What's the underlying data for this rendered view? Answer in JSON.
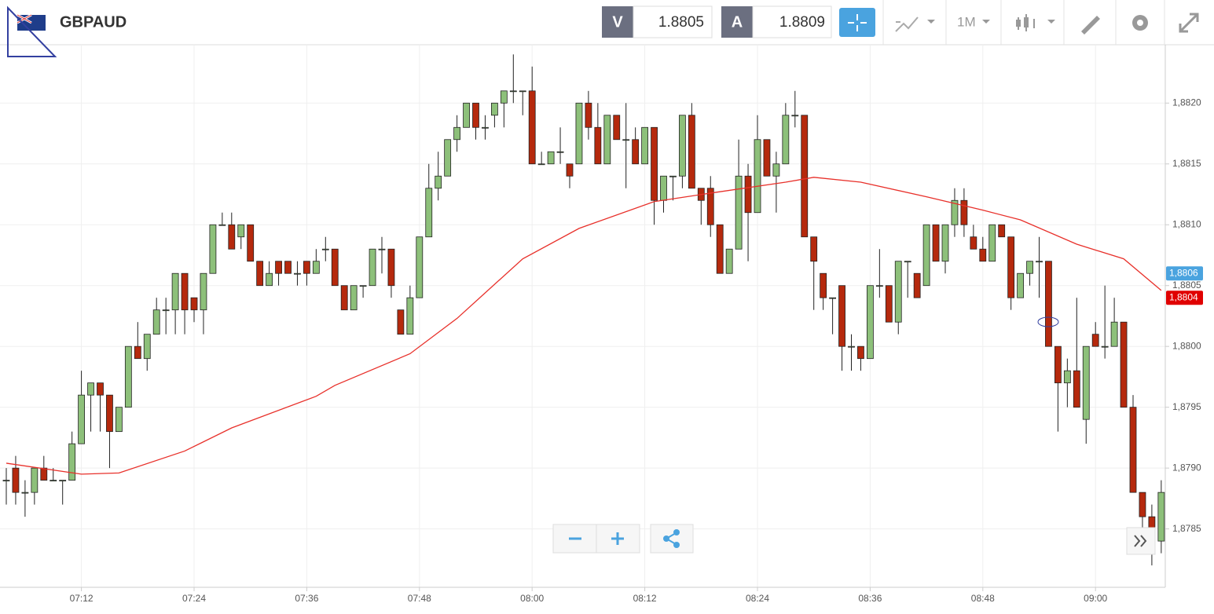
{
  "header": {
    "symbol": "GBPAUD",
    "bid_label": "V",
    "bid": 1.8805,
    "ask_label": "A",
    "ask": 1.8809,
    "timeframe": "1M"
  },
  "chart_data": {
    "type": "candlestick",
    "x": [
      "07:04",
      "07:05",
      "07:06",
      "07:07",
      "07:08",
      "07:09",
      "07:10",
      "07:11",
      "07:12",
      "07:13",
      "07:14",
      "07:15",
      "07:16",
      "07:17",
      "07:18",
      "07:19",
      "07:20",
      "07:21",
      "07:22",
      "07:23",
      "07:24",
      "07:25",
      "07:26",
      "07:27",
      "07:28",
      "07:29",
      "07:30",
      "07:31",
      "07:32",
      "07:33",
      "07:34",
      "07:35",
      "07:36",
      "07:37",
      "07:38",
      "07:39",
      "07:40",
      "07:41",
      "07:42",
      "07:43",
      "07:44",
      "07:45",
      "07:46",
      "07:47",
      "07:48",
      "07:49",
      "07:50",
      "07:51",
      "07:52",
      "07:53",
      "07:54",
      "07:55",
      "07:56",
      "07:57",
      "07:58",
      "07:59",
      "08:00",
      "08:01",
      "08:02",
      "08:03",
      "08:04",
      "08:05",
      "08:06",
      "08:07",
      "08:08",
      "08:09",
      "08:10",
      "08:11",
      "08:12",
      "08:13",
      "08:14",
      "08:15",
      "08:16",
      "08:17",
      "08:18",
      "08:19",
      "08:20",
      "08:21",
      "08:22",
      "08:23",
      "08:24",
      "08:25",
      "08:26",
      "08:27",
      "08:28",
      "08:29",
      "08:30",
      "08:31",
      "08:32",
      "08:33",
      "08:34",
      "08:35",
      "08:36",
      "08:37",
      "08:38",
      "08:39",
      "08:40",
      "08:41",
      "08:42",
      "08:43",
      "08:44",
      "08:45",
      "08:46",
      "08:47",
      "08:48",
      "08:49",
      "08:50",
      "08:51",
      "08:52",
      "08:53",
      "08:54",
      "08:55",
      "08:56",
      "08:57",
      "08:58",
      "08:59",
      "09:00",
      "09:01",
      "09:02",
      "09:03",
      "09:04",
      "09:05",
      "09:06",
      "09:07"
    ],
    "open": [
      1.8789,
      1.879,
      1.8788,
      1.8788,
      1.879,
      1.8789,
      1.8789,
      1.8789,
      1.8792,
      1.8796,
      1.8797,
      1.8796,
      1.8793,
      1.8795,
      1.88,
      1.8799,
      1.8801,
      1.8803,
      1.8803,
      1.8806,
      1.8804,
      1.8803,
      1.8806,
      1.881,
      1.881,
      1.8809,
      1.881,
      1.8807,
      1.8805,
      1.8807,
      1.8807,
      1.8806,
      1.8807,
      1.8806,
      1.8808,
      1.8808,
      1.8805,
      1.8803,
      1.8805,
      1.8805,
      1.8808,
      1.8808,
      1.8803,
      1.8801,
      1.8804,
      1.8809,
      1.8813,
      1.8814,
      1.8817,
      1.8818,
      1.882,
      1.8818,
      1.8819,
      1.882,
      1.8821,
      1.8821,
      1.8821,
      1.8815,
      1.8815,
      1.8816,
      1.8815,
      1.8815,
      1.882,
      1.8818,
      1.8815,
      1.8819,
      1.8817,
      1.8817,
      1.8815,
      1.8818,
      1.8812,
      1.8814,
      1.8814,
      1.8819,
      1.8813,
      1.8813,
      1.881,
      1.8806,
      1.8808,
      1.8814,
      1.8811,
      1.8817,
      1.8814,
      1.8815,
      1.8819,
      1.8819,
      1.8809,
      1.8806,
      1.8804,
      1.8805,
      1.88,
      1.88,
      1.8799,
      1.8805,
      1.8805,
      1.8802,
      1.8807,
      1.8806,
      1.8805,
      1.881,
      1.8807,
      1.881,
      1.8812,
      1.8809,
      1.8808,
      1.8807,
      1.881,
      1.8809,
      1.8804,
      1.8806,
      1.8807,
      1.8807,
      1.88,
      1.8797,
      1.8798,
      1.8794,
      1.8801,
      1.88,
      1.88,
      1.8802,
      1.8795,
      1.8788,
      1.8786,
      1.8784
    ],
    "high": [
      1.879,
      1.8791,
      1.8789,
      1.879,
      1.8791,
      1.879,
      1.8789,
      1.8793,
      1.8798,
      1.8797,
      1.8797,
      1.8796,
      1.8795,
      1.88,
      1.8802,
      1.8801,
      1.8804,
      1.8804,
      1.8806,
      1.8806,
      1.8804,
      1.8806,
      1.881,
      1.8811,
      1.8811,
      1.881,
      1.881,
      1.8807,
      1.8807,
      1.8807,
      1.8807,
      1.8807,
      1.8807,
      1.8808,
      1.8809,
      1.8808,
      1.8805,
      1.8805,
      1.8805,
      1.8808,
      1.8809,
      1.8808,
      1.8803,
      1.8805,
      1.8809,
      1.8815,
      1.8816,
      1.8817,
      1.8819,
      1.882,
      1.882,
      1.8819,
      1.882,
      1.8821,
      1.8824,
      1.8821,
      1.8823,
      1.8816,
      1.8816,
      1.8818,
      1.8815,
      1.882,
      1.8821,
      1.882,
      1.8819,
      1.8819,
      1.882,
      1.8818,
      1.8818,
      1.8818,
      1.8814,
      1.8814,
      1.8819,
      1.882,
      1.8813,
      1.8814,
      1.881,
      1.8808,
      1.8817,
      1.8815,
      1.8819,
      1.8817,
      1.8816,
      1.882,
      1.8821,
      1.8819,
      1.8809,
      1.8806,
      1.8804,
      1.8805,
      1.8801,
      1.88,
      1.8805,
      1.8808,
      1.8805,
      1.8807,
      1.8807,
      1.8806,
      1.881,
      1.881,
      1.881,
      1.8813,
      1.8813,
      1.881,
      1.8809,
      1.881,
      1.881,
      1.8809,
      1.8806,
      1.8807,
      1.8809,
      1.8807,
      1.88,
      1.8799,
      1.8804,
      1.88,
      1.8802,
      1.8805,
      1.8804,
      1.8802,
      1.8796,
      1.8788,
      1.8787,
      1.8789
    ],
    "low": [
      1.8787,
      1.8787,
      1.8786,
      1.8787,
      1.8789,
      1.8789,
      1.8787,
      1.8789,
      1.8792,
      1.8793,
      1.8793,
      1.879,
      1.8793,
      1.8795,
      1.8799,
      1.8798,
      1.8801,
      1.8801,
      1.8801,
      1.8801,
      1.8802,
      1.8801,
      1.8806,
      1.881,
      1.8808,
      1.8808,
      1.8807,
      1.8805,
      1.8805,
      1.8805,
      1.8806,
      1.8805,
      1.8805,
      1.8806,
      1.8807,
      1.8805,
      1.8803,
      1.8803,
      1.8804,
      1.8805,
      1.8806,
      1.8804,
      1.8801,
      1.8801,
      1.8804,
      1.8809,
      1.8812,
      1.8814,
      1.8816,
      1.8818,
      1.8817,
      1.8817,
      1.8818,
      1.8818,
      1.882,
      1.8819,
      1.8815,
      1.8815,
      1.8815,
      1.8815,
      1.8813,
      1.8815,
      1.8817,
      1.8815,
      1.8815,
      1.8817,
      1.8813,
      1.8815,
      1.8815,
      1.881,
      1.8811,
      1.8812,
      1.8813,
      1.8813,
      1.881,
      1.8809,
      1.8806,
      1.8806,
      1.8808,
      1.8807,
      1.8811,
      1.8814,
      1.8811,
      1.8815,
      1.8818,
      1.8809,
      1.8803,
      1.8803,
      1.8801,
      1.8798,
      1.8798,
      1.8798,
      1.8799,
      1.8804,
      1.8802,
      1.8801,
      1.8804,
      1.8804,
      1.8805,
      1.8807,
      1.8806,
      1.8809,
      1.8809,
      1.8808,
      1.8807,
      1.8807,
      1.8809,
      1.8803,
      1.8804,
      1.8805,
      1.8804,
      1.88,
      1.8793,
      1.8795,
      1.8795,
      1.8792,
      1.88,
      1.8799,
      1.88,
      1.8795,
      1.8788,
      1.8785,
      1.8782,
      1.8783
    ],
    "close": [
      1.8789,
      1.8788,
      1.8788,
      1.879,
      1.8789,
      1.8789,
      1.8789,
      1.8792,
      1.8796,
      1.8797,
      1.8796,
      1.8793,
      1.8795,
      1.88,
      1.8799,
      1.8801,
      1.8803,
      1.8803,
      1.8806,
      1.8803,
      1.8803,
      1.8806,
      1.881,
      1.881,
      1.8808,
      1.881,
      1.8807,
      1.8805,
      1.8806,
      1.8806,
      1.8806,
      1.8806,
      1.8806,
      1.8807,
      1.8808,
      1.8805,
      1.8803,
      1.8805,
      1.8805,
      1.8808,
      1.8808,
      1.8805,
      1.8801,
      1.8804,
      1.8809,
      1.8813,
      1.8814,
      1.8817,
      1.8818,
      1.882,
      1.8818,
      1.8818,
      1.882,
      1.8821,
      1.8821,
      1.8821,
      1.8815,
      1.8815,
      1.8816,
      1.8816,
      1.8814,
      1.882,
      1.8818,
      1.8815,
      1.8819,
      1.8817,
      1.8817,
      1.8815,
      1.8818,
      1.8812,
      1.8814,
      1.8814,
      1.8819,
      1.8813,
      1.8812,
      1.881,
      1.8806,
      1.8808,
      1.8814,
      1.8811,
      1.8817,
      1.8814,
      1.8815,
      1.8819,
      1.8819,
      1.8809,
      1.8807,
      1.8804,
      1.8804,
      1.88,
      1.88,
      1.8799,
      1.8805,
      1.8805,
      1.8802,
      1.8807,
      1.8807,
      1.8804,
      1.881,
      1.8807,
      1.881,
      1.8812,
      1.881,
      1.8808,
      1.8807,
      1.881,
      1.8809,
      1.8804,
      1.8806,
      1.8807,
      1.8807,
      1.88,
      1.8797,
      1.8798,
      1.8795,
      1.88,
      1.88,
      1.88,
      1.8802,
      1.8795,
      1.8788,
      1.8786,
      1.8784,
      1.8788
    ],
    "up_color": "#8dc07a",
    "down_color": "#b5290d",
    "ma": {
      "color": "#e8302a",
      "x": [
        "07:04",
        "07:12",
        "07:16",
        "07:23",
        "07:28",
        "07:37",
        "07:39",
        "07:47",
        "07:52",
        "07:59",
        "08:05",
        "08:13",
        "08:19",
        "08:27",
        "08:30",
        "08:35",
        "08:42",
        "08:48",
        "08:52",
        "08:58",
        "09:03",
        "09:07"
      ],
      "values": [
        1.87904,
        1.87895,
        1.87896,
        1.87914,
        1.87933,
        1.87959,
        1.87968,
        1.87994,
        1.88023,
        1.88072,
        1.88097,
        1.88119,
        1.88126,
        1.88135,
        1.88139,
        1.88135,
        1.88123,
        1.88112,
        1.88104,
        1.88084,
        1.88072,
        1.88046
      ]
    },
    "ylim": [
      1.87802,
      1.88246
    ],
    "yticks": [
      {
        "value": 1.8785,
        "label": "1,8785"
      },
      {
        "value": 1.879,
        "label": "1,8790"
      },
      {
        "value": 1.8795,
        "label": "1,8795"
      },
      {
        "value": 1.88,
        "label": "1,8800"
      },
      {
        "value": 1.8805,
        "label": "1,8805"
      },
      {
        "value": 1.881,
        "label": "1,8810"
      },
      {
        "value": 1.8815,
        "label": "1,8815"
      },
      {
        "value": 1.882,
        "label": "1,8820"
      }
    ],
    "xticks": [
      "07:12",
      "07:24",
      "07:36",
      "07:48",
      "08:00",
      "08:12",
      "08:24",
      "08:36",
      "08:48",
      "09:00"
    ],
    "grid": true,
    "price_tags": [
      {
        "value": 1.8806,
        "label": "1,8806",
        "color": "#4aa3df"
      },
      {
        "value": 1.8804,
        "label": "1,8804",
        "color": "#e00000"
      }
    ]
  }
}
